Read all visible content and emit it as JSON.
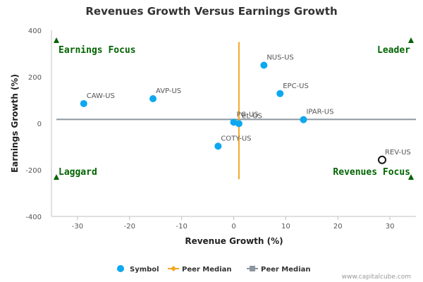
{
  "chart_data": {
    "type": "scatter",
    "title": "Revenues Growth Versus Earnings Growth",
    "xlabel": "Revenue Growth (%)",
    "ylabel": "Earnings Growth (%)",
    "xlim": [
      -35,
      35
    ],
    "ylim": [
      -400,
      400
    ],
    "x_ticks": [
      -30,
      -20,
      -10,
      0,
      10,
      20,
      30
    ],
    "y_ticks": [
      -400,
      -200,
      0,
      200,
      400
    ],
    "grid": false,
    "legend_placement": "bottom-center",
    "points": [
      {
        "label": "NUS-US",
        "x": 5.8,
        "y": 250,
        "style": "filled"
      },
      {
        "label": "EPC-US",
        "x": 8.9,
        "y": 128,
        "style": "filled"
      },
      {
        "label": "CAW-US",
        "x": -28.8,
        "y": 85,
        "style": "filled"
      },
      {
        "label": "AVP-US",
        "x": -15.5,
        "y": 106,
        "style": "filled"
      },
      {
        "label": "PG-US",
        "x": 0.0,
        "y": 5,
        "style": "filled"
      },
      {
        "label": "EL-US",
        "x": 1.0,
        "y": -1,
        "style": "filled"
      },
      {
        "label": "IPAR-US",
        "x": 13.4,
        "y": 16,
        "style": "filled"
      },
      {
        "label": "COTY-US",
        "x": -3.0,
        "y": -98,
        "style": "filled"
      },
      {
        "label": "REV-US",
        "x": 28.5,
        "y": -157,
        "style": "hollow"
      }
    ],
    "peer_median_vertical": {
      "x": 1.0,
      "y_from": 350,
      "y_to": -240
    },
    "peer_median_horizontal": {
      "y": 17
    },
    "quadrants": {
      "top_left": "Earnings Focus",
      "top_right": "Leader",
      "bottom_left": "Laggard",
      "bottom_right": "Revenues Focus"
    },
    "legend": [
      {
        "label": "Symbol",
        "marker": "circle",
        "color": "#0da8f0"
      },
      {
        "label": "Peer Median",
        "marker": "line-diamond",
        "color": "#f5a623"
      },
      {
        "label": "Peer Median",
        "marker": "line-square",
        "color": "#8c96a0"
      }
    ],
    "colors": {
      "point": "#0da8f0",
      "vertical_median": "#f5a623",
      "horizontal_median": "#8c96a0",
      "quadrant": "#006400"
    }
  },
  "credit": "www.capitalcube.com"
}
